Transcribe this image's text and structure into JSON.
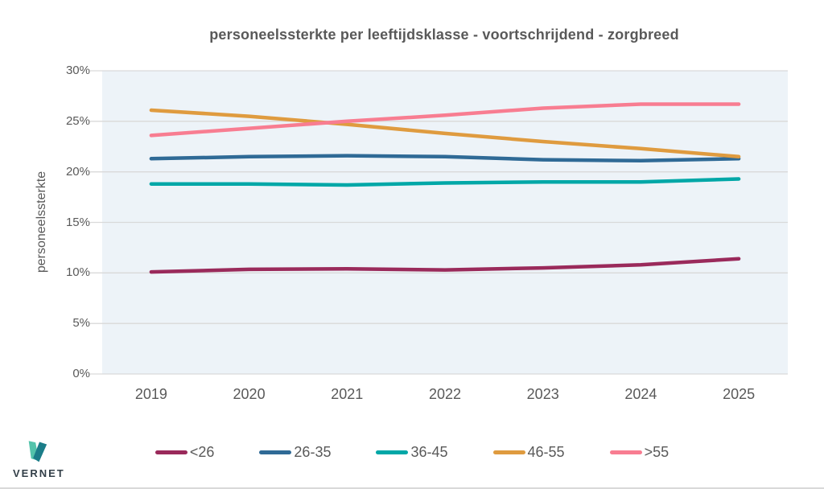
{
  "chart_data": {
    "type": "line",
    "title": "personeelssterkte per leeftijdsklasse - voortschrijdend  - zorgbreed",
    "xlabel": "",
    "ylabel": "personeelssterkte",
    "x": [
      "2019",
      "2020",
      "2021",
      "2022",
      "2023",
      "2024",
      "2025"
    ],
    "ylim": [
      0,
      30
    ],
    "ytick_values": [
      0,
      5,
      10,
      15,
      20,
      25,
      30
    ],
    "ytick_labels": [
      "0%",
      "5%",
      "10%",
      "15%",
      "20%",
      "25%",
      "30%"
    ],
    "grid": true,
    "legend_position": "bottom",
    "series": [
      {
        "name": "<26",
        "color": "#9a2a5b",
        "values": [
          10.1,
          10.35,
          10.4,
          10.3,
          10.5,
          10.8,
          11.4
        ]
      },
      {
        "name": "26-35",
        "color": "#2f6a96",
        "values": [
          21.3,
          21.5,
          21.6,
          21.5,
          21.2,
          21.1,
          21.3
        ]
      },
      {
        "name": "36-45",
        "color": "#00a7a7",
        "values": [
          18.8,
          18.8,
          18.7,
          18.9,
          19.0,
          19.0,
          19.3
        ]
      },
      {
        "name": "46-55",
        "color": "#df9b3f",
        "values": [
          26.1,
          25.5,
          24.7,
          23.8,
          23.0,
          22.3,
          21.5
        ]
      },
      {
        "name": ">55",
        "color": "#f87d91",
        "values": [
          23.6,
          24.3,
          25.0,
          25.6,
          26.3,
          26.7,
          26.7
        ]
      }
    ]
  },
  "colors": {
    "plot_bg": "#edf3f8",
    "gridline": "#d9d9d9",
    "axis_text": "#595959"
  },
  "logo": {
    "text": "VERNET",
    "light": "#53c3ab",
    "dark": "#1b7d89",
    "text_color": "#333f48"
  }
}
